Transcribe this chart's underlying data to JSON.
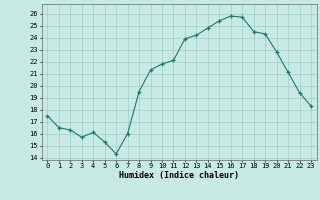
{
  "x": [
    0,
    1,
    2,
    3,
    4,
    5,
    6,
    7,
    8,
    9,
    10,
    11,
    12,
    13,
    14,
    15,
    16,
    17,
    18,
    19,
    20,
    21,
    22,
    23
  ],
  "y": [
    17.5,
    16.5,
    16.3,
    15.7,
    16.1,
    15.3,
    14.3,
    16.0,
    19.5,
    21.3,
    21.8,
    22.1,
    23.9,
    24.2,
    24.8,
    25.4,
    25.8,
    25.7,
    24.5,
    24.3,
    22.8,
    21.1,
    19.4,
    18.3
  ],
  "title": "",
  "xlabel": "Humidex (Indice chaleur)",
  "ylabel": "",
  "xlim": [
    -0.5,
    23.5
  ],
  "ylim": [
    13.8,
    26.8
  ],
  "yticks": [
    14,
    15,
    16,
    17,
    18,
    19,
    20,
    21,
    22,
    23,
    24,
    25,
    26
  ],
  "xticks": [
    0,
    1,
    2,
    3,
    4,
    5,
    6,
    7,
    8,
    9,
    10,
    11,
    12,
    13,
    14,
    15,
    16,
    17,
    18,
    19,
    20,
    21,
    22,
    23
  ],
  "line_color": "#1a7a6e",
  "marker": "+",
  "bg_color": "#c8eae4",
  "grid_color": "#a0d0c8"
}
